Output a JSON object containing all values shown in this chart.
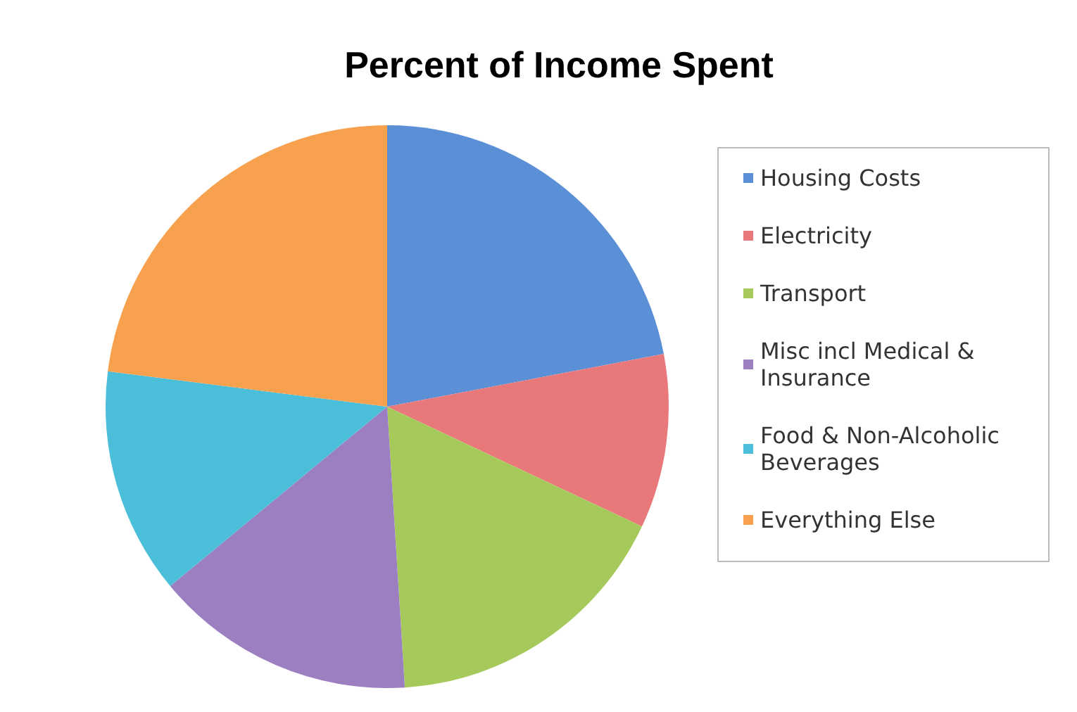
{
  "chart_data": {
    "type": "pie",
    "title": "Percent of Income Spent",
    "categories": [
      "Housing Costs",
      "Electricity",
      "Transport",
      "Misc incl Medical & Insurance",
      "Food & Non-Alcoholic Beverages",
      "Everything Else"
    ],
    "values": [
      22,
      10,
      17,
      15,
      13,
      23
    ],
    "colors": [
      "#5b8fd6",
      "#e8787a",
      "#a6c95c",
      "#9b7fc0",
      "#4bbfd9",
      "#f7a04e"
    ],
    "legend": "right"
  }
}
